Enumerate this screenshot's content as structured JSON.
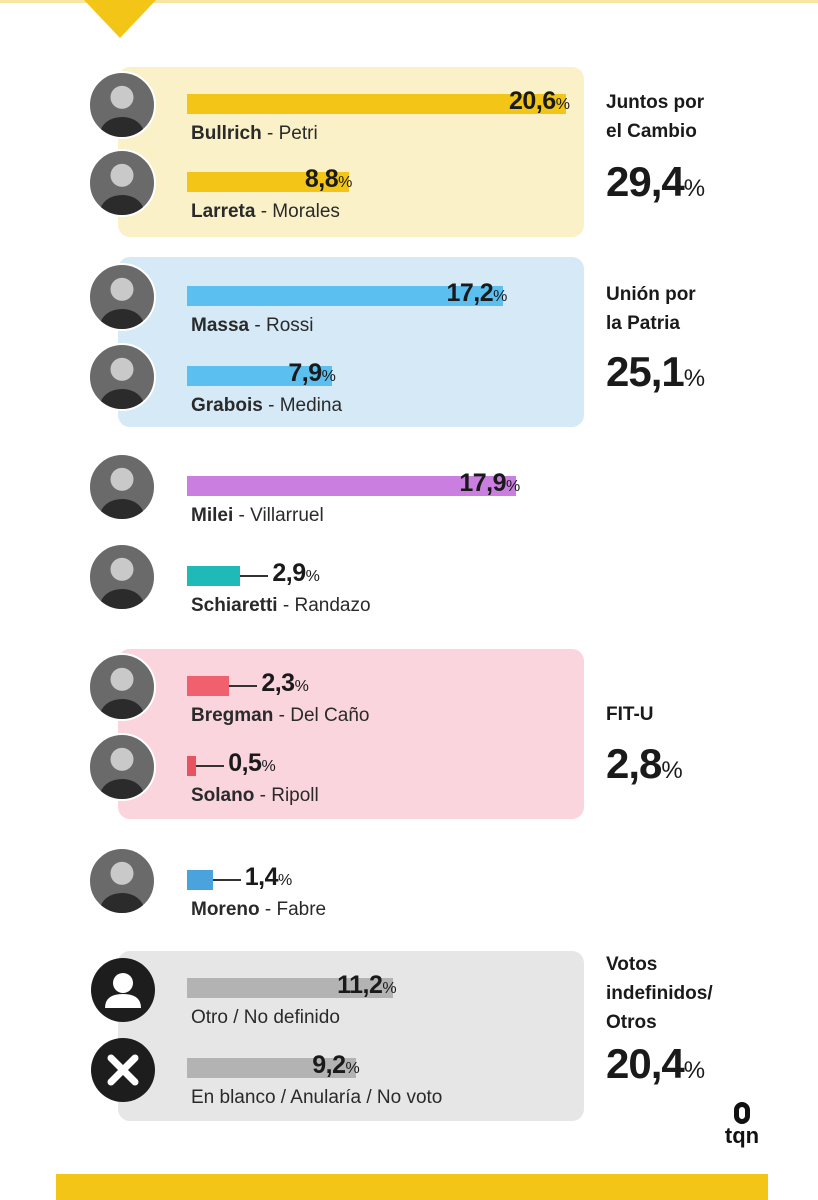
{
  "colors": {
    "accent": "#f2c516",
    "juntos_bg": "#faf1c8",
    "union_bg": "#d5e9f7",
    "fit_bg": "#fad5dd",
    "otros_bg": "#e6e6e6"
  },
  "groups": [
    {
      "id": "juntos",
      "label": "Juntos por\nel Cambio",
      "total": "29,4",
      "color": "#faf1c8"
    },
    {
      "id": "union",
      "label": "Unión por\nla Patria",
      "total": "25,1",
      "color": "#d5e9f7"
    },
    {
      "id": "fit",
      "label": "FIT-U",
      "total": "2,8",
      "color": "#fad5dd"
    },
    {
      "id": "otros",
      "label": "Votos\nindefinidos/\nOtros",
      "total": "20,4",
      "color": "#e6e6e6"
    }
  ],
  "percent_sign": "%",
  "brand": "tqn",
  "chart_data": {
    "type": "bar",
    "orientation": "horizontal",
    "unit": "%",
    "categories": [
      "Bullrich - Petri",
      "Larreta - Morales",
      "Massa - Rossi",
      "Grabois - Medina",
      "Milei - Villarruel",
      "Schiaretti - Randazo",
      "Bregman - Del Caño",
      "Solano - Ripoll",
      "Moreno - Fabre",
      "Otro / No definido",
      "En blanco / Anularía / No voto"
    ],
    "values": [
      20.6,
      8.8,
      17.2,
      7.9,
      17.9,
      2.9,
      2.3,
      0.5,
      1.4,
      11.2,
      9.2
    ],
    "rows": [
      {
        "bold": "Bullrich",
        "rest": " - Petri",
        "value": 20.6,
        "label": "20,6",
        "color": "#f2c516",
        "avatar": "person"
      },
      {
        "bold": "Larreta",
        "rest": " - Morales",
        "value": 8.8,
        "label": "8,8",
        "color": "#f2c516",
        "avatar": "person"
      },
      {
        "bold": "Massa",
        "rest": " - Rossi",
        "value": 17.2,
        "label": "17,2",
        "color": "#5bbff0",
        "avatar": "person"
      },
      {
        "bold": "Grabois",
        "rest": " - Medina",
        "value": 7.9,
        "label": "7,9",
        "color": "#5bbff0",
        "avatar": "person"
      },
      {
        "bold": "Milei",
        "rest": " - Villarruel",
        "value": 17.9,
        "label": "17,9",
        "color": "#c97ee0",
        "avatar": "person"
      },
      {
        "bold": "Schiaretti",
        "rest": " - Randazo",
        "value": 2.9,
        "label": "2,9",
        "color": "#1fbab8",
        "avatar": "person"
      },
      {
        "bold": "Bregman",
        "rest": " - Del Caño",
        "value": 2.3,
        "label": "2,3",
        "color": "#f0606e",
        "avatar": "person"
      },
      {
        "bold": "Solano",
        "rest": " - Ripoll",
        "value": 0.5,
        "label": "0,5",
        "color": "#e5545f",
        "avatar": "person"
      },
      {
        "bold": "Moreno",
        "rest": " - Fabre",
        "value": 1.4,
        "label": "1,4",
        "color": "#4aa3dc",
        "avatar": "person"
      },
      {
        "bold": "",
        "rest": "Otro / No definido",
        "value": 11.2,
        "label": "11,2",
        "color": "#b3b3b3",
        "avatar": "user-icon"
      },
      {
        "bold": "",
        "rest": "En blanco / Anularía / No voto",
        "value": 9.2,
        "label": "9,2",
        "color": "#b3b3b3",
        "avatar": "x-icon"
      }
    ]
  }
}
